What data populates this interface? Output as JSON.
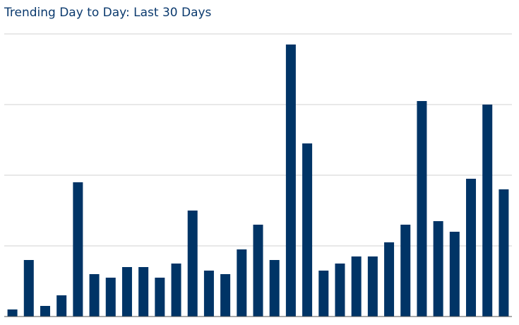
{
  "chart_data": {
    "type": "bar",
    "title": "Trending Day to Day: Last 30 Days",
    "categories": [
      null,
      null,
      null,
      null,
      null,
      null,
      null,
      null,
      null,
      null,
      null,
      null,
      null,
      null,
      null,
      null,
      null,
      null,
      null,
      null,
      null,
      null,
      null,
      null,
      null,
      null,
      null,
      null,
      null,
      null,
      null
    ],
    "values": [
      2,
      16,
      3,
      6,
      38,
      12,
      11,
      14,
      14,
      11,
      15,
      30,
      13,
      12,
      19,
      26,
      16,
      77,
      49,
      13,
      15,
      17,
      17,
      21,
      26,
      61,
      27,
      24,
      39,
      60,
      36
    ],
    "color": "#003466",
    "ylim": [
      0,
      80
    ],
    "yticks": [
      0,
      20,
      40,
      60,
      80
    ],
    "grid": true
  }
}
